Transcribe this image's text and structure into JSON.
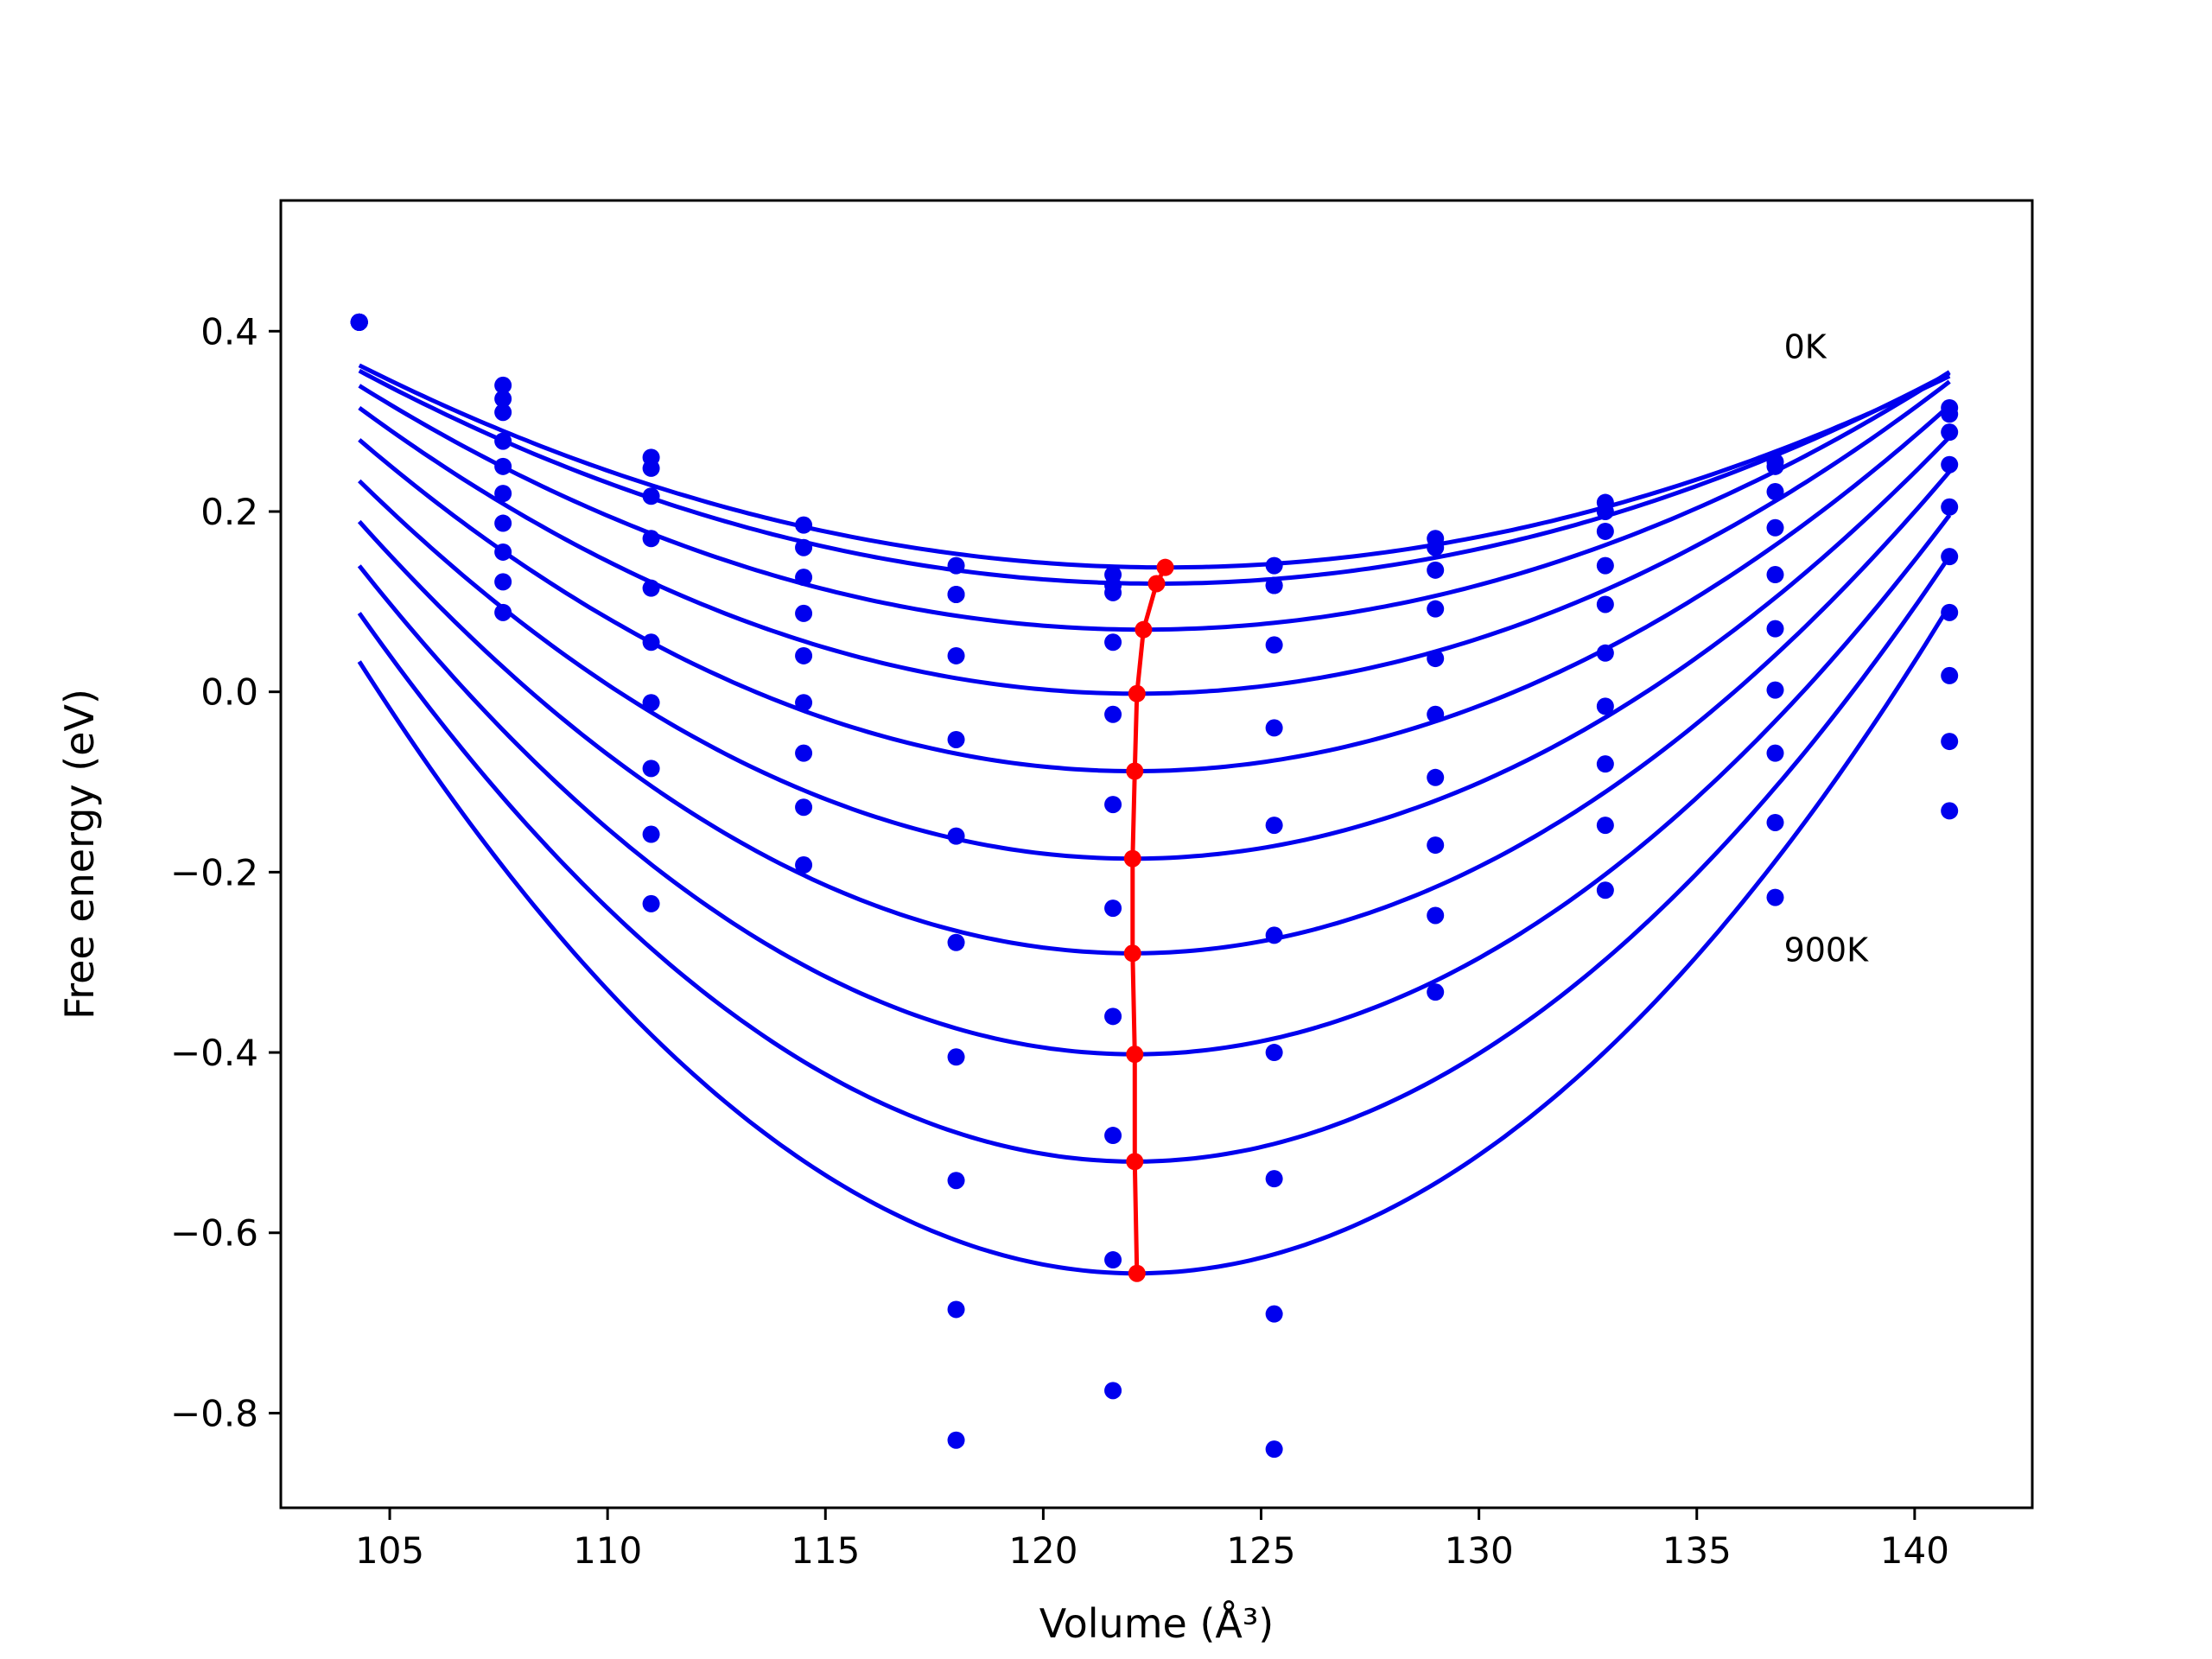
{
  "chart_data": {
    "type": "line",
    "xlabel": "Volume (Å³)",
    "ylabel": "Free energy (eV)",
    "xlim": [
      102.5,
      142.7
    ],
    "ylim": [
      -0.905,
      0.545
    ],
    "xticks": [
      105,
      110,
      115,
      120,
      125,
      130,
      135,
      140
    ],
    "yticks": [
      0.4,
      0.2,
      0.0,
      -0.2,
      -0.4,
      -0.6,
      -0.8
    ],
    "ytick_labels": [
      "0.4",
      "0.2",
      "0.0",
      "−0.2",
      "−0.4",
      "−0.6",
      "−0.8"
    ],
    "annotations": [
      {
        "text": "0K",
        "x": 137.0,
        "y": 0.37
      },
      {
        "text": "900K",
        "x": 137.0,
        "y": -0.27
      }
    ],
    "blue_color": "#0000ee",
    "red_color": "#ff0000",
    "series": [
      {
        "role": "scatter",
        "x": [
          104.3,
          107.6,
          111.0,
          114.5,
          118.0,
          121.6,
          125.3,
          129.0,
          132.9,
          136.8,
          140.8
        ],
        "values": [
          0.41,
          0.34,
          0.26,
          0.185,
          0.14,
          0.13,
          0.14,
          0.17,
          0.21,
          0.255,
          0.315
        ]
      },
      {
        "role": "scatter",
        "x": [
          104.3,
          107.6,
          111.0,
          114.5,
          118.0,
          121.6,
          125.3,
          129.0,
          132.9,
          136.8,
          140.8
        ],
        "values": [
          0.41,
          0.325,
          0.248,
          0.16,
          0.108,
          0.11,
          0.118,
          0.16,
          0.2,
          0.25,
          0.308
        ]
      },
      {
        "role": "scatter",
        "x": [
          104.3,
          107.6,
          111.0,
          114.5,
          118.0,
          121.6,
          125.3,
          129.0,
          132.9,
          136.8,
          140.8
        ],
        "values": [
          0.41,
          0.31,
          0.217,
          0.127,
          0.108,
          0.118,
          0.118,
          0.135,
          0.178,
          0.222,
          0.288
        ]
      },
      {
        "role": "scatter",
        "x": [
          104.3,
          107.6,
          111.0,
          114.5,
          118.0,
          121.6,
          125.3,
          129.0,
          132.9,
          136.8,
          140.8
        ],
        "values": [
          0.41,
          0.278,
          0.17,
          0.087,
          0.04,
          0.055,
          0.052,
          0.092,
          0.14,
          0.182,
          0.252
        ]
      },
      {
        "role": "scatter",
        "x": [
          104.3,
          107.6,
          111.0,
          114.5,
          118.0,
          121.6,
          125.3,
          129.0,
          132.9,
          136.8,
          140.8
        ],
        "values": [
          0.41,
          0.25,
          0.115,
          0.04,
          -0.053,
          -0.025,
          -0.04,
          0.037,
          0.097,
          0.13,
          0.205
        ]
      },
      {
        "role": "scatter",
        "x": [
          104.3,
          107.6,
          111.0,
          114.5,
          118.0,
          121.6,
          125.3,
          129.0,
          132.9,
          136.8,
          140.8
        ],
        "values": [
          0.41,
          0.22,
          0.055,
          -0.012,
          -0.16,
          -0.125,
          -0.148,
          -0.025,
          0.043,
          0.07,
          0.15
        ]
      },
      {
        "role": "scatter",
        "x": [
          104.3,
          107.6,
          111.0,
          114.5,
          118.0,
          121.6,
          125.3,
          129.0,
          132.9,
          136.8,
          140.8
        ],
        "values": [
          0.41,
          0.187,
          -0.012,
          -0.068,
          -0.278,
          -0.24,
          -0.27,
          -0.095,
          -0.016,
          0.002,
          0.088
        ]
      },
      {
        "role": "scatter",
        "x": [
          104.3,
          107.6,
          111.0,
          114.5,
          118.0,
          121.6,
          125.3,
          129.0,
          132.9,
          136.8,
          140.8
        ],
        "values": [
          0.41,
          0.155,
          -0.085,
          -0.128,
          -0.405,
          -0.36,
          -0.4,
          -0.17,
          -0.08,
          -0.068,
          0.018
        ]
      },
      {
        "role": "scatter",
        "x": [
          104.3,
          107.6,
          111.0,
          114.5,
          118.0,
          121.6,
          125.3,
          129.0,
          132.9,
          136.8,
          140.8
        ],
        "values": [
          0.41,
          0.122,
          -0.158,
          -0.192,
          -0.542,
          -0.492,
          -0.54,
          -0.248,
          -0.148,
          -0.145,
          -0.055
        ]
      },
      {
        "role": "scatter",
        "x": [
          104.3,
          107.6,
          111.0,
          114.5,
          118.0,
          121.6,
          125.3,
          129.0,
          132.9,
          136.8,
          140.8
        ],
        "values": [
          0.41,
          0.088,
          -0.235,
          null,
          -0.685,
          -0.63,
          -0.69,
          -0.333,
          -0.22,
          -0.228,
          -0.132
        ]
      },
      {
        "role": "scatter",
        "x": [
          118.0,
          121.6,
          125.3
        ],
        "values": [
          -0.83,
          -0.775,
          -0.84
        ]
      }
    ],
    "fits": [
      {
        "v0": 122.8,
        "f0": 0.138,
        "a": 0.000655
      },
      {
        "v0": 122.6,
        "f0": 0.12,
        "a": 0.000705
      },
      {
        "v0": 122.3,
        "f0": 0.069,
        "a": 0.000835
      },
      {
        "v0": 122.15,
        "f0": -0.002,
        "a": 0.000995
      },
      {
        "v0": 122.1,
        "f0": -0.088,
        "a": 0.00116
      },
      {
        "v0": 122.05,
        "f0": -0.185,
        "a": 0.00133
      },
      {
        "v0": 122.05,
        "f0": -0.29,
        "a": 0.00152
      },
      {
        "v0": 122.1,
        "f0": -0.402,
        "a": 0.00171
      },
      {
        "v0": 122.1,
        "f0": -0.521,
        "a": 0.00192
      },
      {
        "v0": 122.15,
        "f0": -0.645,
        "a": 0.00213
      }
    ],
    "fit_x_range": [
      104.3,
      140.8
    ],
    "minima": {
      "x": [
        122.8,
        122.6,
        122.3,
        122.15,
        122.1,
        122.05,
        122.05,
        122.1,
        122.1,
        122.15
      ],
      "values": [
        0.138,
        0.12,
        0.069,
        -0.002,
        -0.088,
        -0.185,
        -0.29,
        -0.402,
        -0.521,
        -0.645
      ]
    },
    "grid": false,
    "legend": "none"
  }
}
